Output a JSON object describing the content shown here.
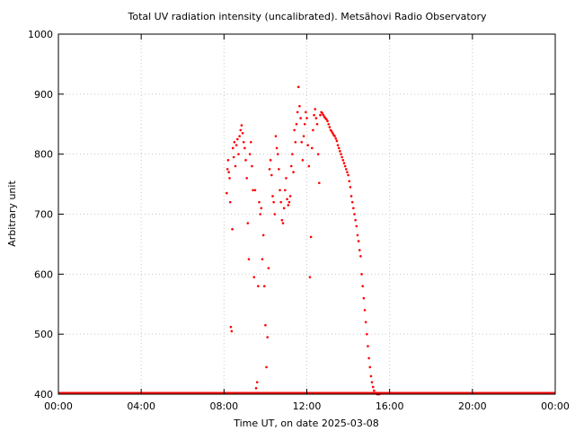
{
  "chart_data": {
    "type": "scatter",
    "title": "Total UV radiation intensity (uncalibrated). Metsähovi Radio Observatory",
    "xlabel": "Time UT, on date 2025-03-08",
    "ylabel": "Arbitrary unit",
    "xlim": [
      0,
      24
    ],
    "ylim": [
      400,
      1000
    ],
    "xticks": [
      0,
      4,
      8,
      12,
      16,
      20,
      24
    ],
    "xtick_labels": [
      "00:00",
      "04:00",
      "08:00",
      "12:00",
      "16:00",
      "20:00",
      "00:00"
    ],
    "yticks": [
      400,
      500,
      600,
      700,
      800,
      900,
      1000
    ],
    "ytick_labels": [
      "400",
      "500",
      "600",
      "700",
      "800",
      "900",
      "1000"
    ],
    "grid": true,
    "marker_color": "#ff0000",
    "baseline": {
      "x_start": 0,
      "x_end": 24,
      "y": 400
    },
    "series": [
      {
        "points": [
          [
            8.13,
            735
          ],
          [
            8.17,
            775
          ],
          [
            8.2,
            790
          ],
          [
            8.23,
            770
          ],
          [
            8.27,
            760
          ],
          [
            8.3,
            720
          ],
          [
            8.33,
            512
          ],
          [
            8.37,
            505
          ],
          [
            8.4,
            675
          ],
          [
            8.43,
            810
          ],
          [
            8.47,
            795
          ],
          [
            8.5,
            820
          ],
          [
            8.55,
            780
          ],
          [
            8.6,
            815
          ],
          [
            8.65,
            825
          ],
          [
            8.7,
            800
          ],
          [
            8.75,
            830
          ],
          [
            8.8,
            840
          ],
          [
            8.85,
            848
          ],
          [
            8.9,
            835
          ],
          [
            8.95,
            820
          ],
          [
            9.0,
            810
          ],
          [
            9.05,
            790
          ],
          [
            9.1,
            760
          ],
          [
            9.15,
            685
          ],
          [
            9.2,
            625
          ],
          [
            9.25,
            800
          ],
          [
            9.3,
            820
          ],
          [
            9.35,
            780
          ],
          [
            9.4,
            740
          ],
          [
            9.45,
            595
          ],
          [
            9.5,
            740
          ],
          [
            9.55,
            410
          ],
          [
            9.6,
            420
          ],
          [
            9.65,
            580
          ],
          [
            9.7,
            720
          ],
          [
            9.75,
            700
          ],
          [
            9.8,
            710
          ],
          [
            9.85,
            625
          ],
          [
            9.9,
            665
          ],
          [
            9.95,
            580
          ],
          [
            10.0,
            515
          ],
          [
            10.05,
            445
          ],
          [
            10.1,
            495
          ],
          [
            10.15,
            610
          ],
          [
            10.2,
            775
          ],
          [
            10.25,
            790
          ],
          [
            10.3,
            765
          ],
          [
            10.35,
            730
          ],
          [
            10.4,
            720
          ],
          [
            10.45,
            700
          ],
          [
            10.5,
            830
          ],
          [
            10.55,
            810
          ],
          [
            10.6,
            800
          ],
          [
            10.65,
            775
          ],
          [
            10.7,
            740
          ],
          [
            10.75,
            720
          ],
          [
            10.8,
            690
          ],
          [
            10.85,
            685
          ],
          [
            10.9,
            710
          ],
          [
            10.95,
            740
          ],
          [
            11.0,
            760
          ],
          [
            11.05,
            725
          ],
          [
            11.1,
            715
          ],
          [
            11.15,
            720
          ],
          [
            11.2,
            730
          ],
          [
            11.25,
            780
          ],
          [
            11.3,
            800
          ],
          [
            11.35,
            770
          ],
          [
            11.4,
            840
          ],
          [
            11.45,
            820
          ],
          [
            11.5,
            850
          ],
          [
            11.55,
            870
          ],
          [
            11.6,
            912
          ],
          [
            11.65,
            880
          ],
          [
            11.7,
            860
          ],
          [
            11.75,
            820
          ],
          [
            11.8,
            790
          ],
          [
            11.85,
            830
          ],
          [
            11.9,
            850
          ],
          [
            11.95,
            870
          ],
          [
            12.0,
            860
          ],
          [
            12.05,
            815
          ],
          [
            12.1,
            780
          ],
          [
            12.15,
            595
          ],
          [
            12.2,
            662
          ],
          [
            12.25,
            810
          ],
          [
            12.3,
            840
          ],
          [
            12.35,
            865
          ],
          [
            12.4,
            875
          ],
          [
            12.45,
            860
          ],
          [
            12.5,
            850
          ],
          [
            12.55,
            800
          ],
          [
            12.6,
            752
          ],
          [
            12.65,
            865
          ],
          [
            12.7,
            870
          ],
          [
            12.75,
            868
          ],
          [
            12.8,
            865
          ],
          [
            12.85,
            862
          ],
          [
            12.9,
            860
          ],
          [
            12.95,
            858
          ],
          [
            13.0,
            855
          ],
          [
            13.05,
            850
          ],
          [
            13.1,
            845
          ],
          [
            13.15,
            840
          ],
          [
            13.2,
            838
          ],
          [
            13.25,
            835
          ],
          [
            13.3,
            832
          ],
          [
            13.35,
            830
          ],
          [
            13.4,
            826
          ],
          [
            13.45,
            822
          ],
          [
            13.5,
            815
          ],
          [
            13.55,
            810
          ],
          [
            13.6,
            805
          ],
          [
            13.65,
            800
          ],
          [
            13.7,
            795
          ],
          [
            13.75,
            790
          ],
          [
            13.8,
            785
          ],
          [
            13.85,
            780
          ],
          [
            13.9,
            775
          ],
          [
            13.95,
            770
          ],
          [
            14.0,
            765
          ],
          [
            14.05,
            755
          ],
          [
            14.1,
            745
          ],
          [
            14.15,
            730
          ],
          [
            14.2,
            720
          ],
          [
            14.25,
            710
          ],
          [
            14.3,
            700
          ],
          [
            14.35,
            690
          ],
          [
            14.4,
            680
          ],
          [
            14.45,
            665
          ],
          [
            14.5,
            655
          ],
          [
            14.55,
            640
          ],
          [
            14.6,
            630
          ],
          [
            14.65,
            600
          ],
          [
            14.7,
            580
          ],
          [
            14.75,
            560
          ],
          [
            14.8,
            540
          ],
          [
            14.85,
            520
          ],
          [
            14.9,
            500
          ],
          [
            14.95,
            480
          ],
          [
            15.0,
            460
          ],
          [
            15.05,
            445
          ],
          [
            15.1,
            430
          ],
          [
            15.15,
            420
          ],
          [
            15.2,
            412
          ],
          [
            15.25,
            406
          ],
          [
            15.3,
            402
          ],
          [
            15.35,
            401
          ],
          [
            15.4,
            400
          ],
          [
            15.45,
            400
          ],
          [
            15.5,
            400
          ]
        ]
      }
    ]
  }
}
